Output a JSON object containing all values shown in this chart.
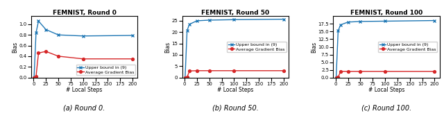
{
  "panels": [
    {
      "title": "FEMNIST, Round 0",
      "caption": "(a) Round 0.",
      "xlabel": "# Local Steps",
      "ylabel": "Bias",
      "x": [
        1,
        5,
        10,
        25,
        50,
        100,
        200
      ],
      "upper_bound": [
        0.0,
        0.84,
        1.06,
        0.9,
        0.8,
        0.78,
        0.79
      ],
      "avg_grad_bias": [
        0.0,
        0.02,
        0.46,
        0.49,
        0.4,
        0.35,
        0.35
      ],
      "ylim": [
        0,
        1.15
      ],
      "yticks": [
        0.0,
        0.2,
        0.4,
        0.6,
        0.8,
        1.0
      ],
      "legend_loc": "lower right"
    },
    {
      "title": "FEMNIST, Round 50",
      "caption": "(b) Round 50.",
      "xlabel": "# Local Steps",
      "ylabel": "Bias",
      "x": [
        1,
        5,
        10,
        25,
        50,
        100,
        200
      ],
      "upper_bound": [
        0.0,
        20.8,
        23.5,
        25.0,
        25.3,
        25.5,
        25.7
      ],
      "avg_grad_bias": [
        0.0,
        0.2,
        2.9,
        3.0,
        3.0,
        3.0,
        3.0
      ],
      "ylim": [
        0,
        27
      ],
      "yticks": [
        0,
        5,
        10,
        15,
        20,
        25
      ],
      "legend_loc": "center right"
    },
    {
      "title": "FEMNIST, Round 100",
      "caption": "(c) Round 100.",
      "xlabel": "# Local Steps",
      "ylabel": "Bias",
      "x": [
        1,
        5,
        10,
        25,
        50,
        100,
        200
      ],
      "upper_bound": [
        0.0,
        15.3,
        17.2,
        18.1,
        18.3,
        18.4,
        18.6
      ],
      "avg_grad_bias": [
        0.0,
        0.1,
        2.0,
        2.0,
        2.0,
        2.0,
        2.0
      ],
      "ylim": [
        0,
        20
      ],
      "yticks": [
        0.0,
        2.5,
        5.0,
        7.5,
        10.0,
        12.5,
        15.0,
        17.5
      ],
      "legend_loc": "center right"
    }
  ],
  "blue_color": "#1f77b4",
  "red_color": "#d62728",
  "legend_label_upper": "Upper bound in (9)",
  "legend_label_avg": "Average Gradient Bias",
  "title_fontsize": 6.5,
  "label_fontsize": 5.5,
  "tick_fontsize": 5.0,
  "legend_fontsize": 4.5,
  "caption_fontsize": 7.0,
  "xticks": [
    0,
    25,
    50,
    75,
    100,
    125,
    150,
    175,
    200
  ],
  "xtick_labels": [
    "0",
    "25",
    "50",
    "75",
    "100",
    "125",
    "150",
    "175",
    "200"
  ]
}
